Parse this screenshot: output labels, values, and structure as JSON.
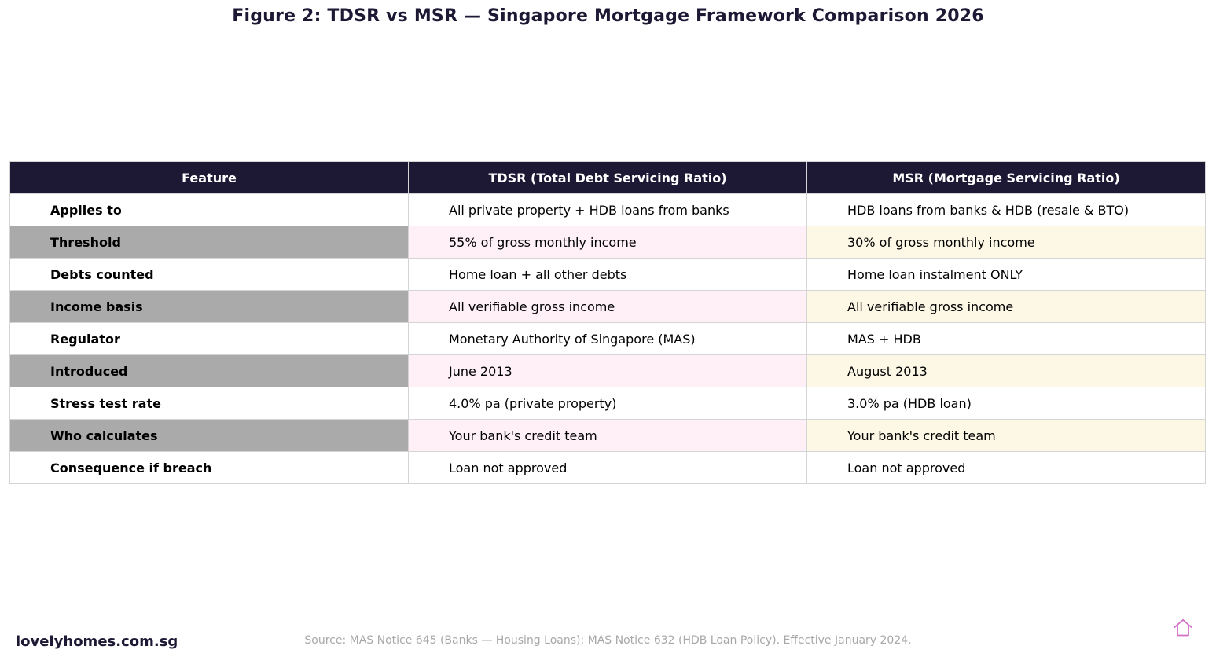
{
  "title": "Figure 2: TDSR vs MSR — Singapore Mortgage Framework Comparison 2026",
  "chart_data": {
    "type": "table",
    "title": "Figure 2: TDSR vs MSR — Singapore Mortgage Framework Comparison 2026",
    "columns": [
      "Feature",
      "TDSR (Total Debt Servicing Ratio)",
      "MSR (Mortgage Servicing Ratio)"
    ],
    "rows": [
      [
        "Applies to",
        "All private property + HDB loans from banks",
        "HDB loans from banks & HDB (resale & BTO)"
      ],
      [
        "Threshold",
        "55% of gross monthly income",
        "30% of gross monthly income"
      ],
      [
        "Debts counted",
        "Home loan + all other debts",
        "Home loan instalment ONLY"
      ],
      [
        "Income basis",
        "All verifiable gross income",
        "All verifiable gross income"
      ],
      [
        "Regulator",
        "Monetary Authority of Singapore (MAS)",
        "MAS + HDB"
      ],
      [
        "Introduced",
        "June 2013",
        "August 2013"
      ],
      [
        "Stress test rate",
        "4.0% pa (private property)",
        "3.0% pa (HDB loan)"
      ],
      [
        "Who calculates",
        "Your bank's credit team",
        "Your bank's credit team"
      ],
      [
        "Consequence if breach",
        "Loan not approved",
        "Loan not approved"
      ]
    ]
  },
  "colors": {
    "header_bg": "#1d1935",
    "header_text": "#ffffff",
    "feature_alt_bg": "#aaaaaa",
    "tdsr_alt_bg": "#fff0f8",
    "msr_alt_bg": "#fdf8e6",
    "border": "#d4d4d4",
    "footer_brand": "#1d1935",
    "footer_source": "#a8a8a8",
    "home_icon": "#d46fc6"
  },
  "footer": {
    "brand": "lovelyhomes.com.sg",
    "source": "Source: MAS Notice 645 (Banks — Housing Loans); MAS Notice 632 (HDB Loan Policy). Effective January 2024.",
    "icon": "home-icon"
  }
}
